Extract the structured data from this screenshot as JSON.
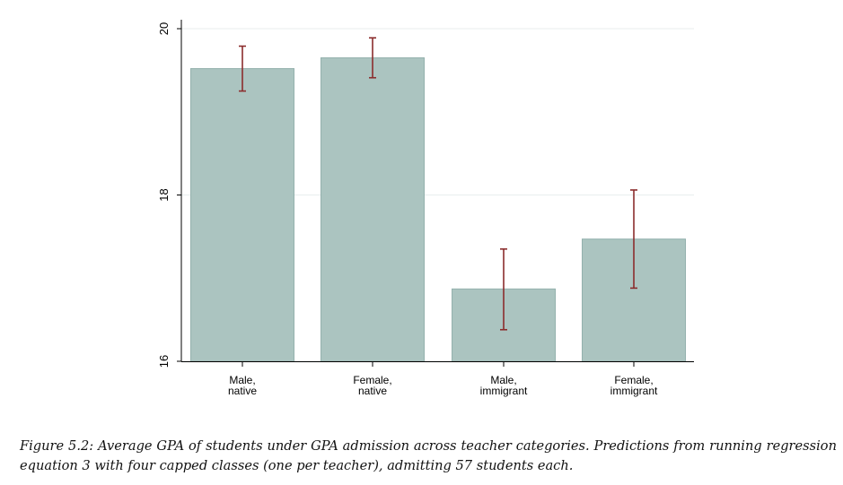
{
  "chart_data": {
    "type": "bar",
    "categories": [
      [
        "Male,",
        "native"
      ],
      [
        "Female,",
        "native"
      ],
      [
        "Male,",
        "immigrant"
      ],
      [
        "Female,",
        "immigrant"
      ]
    ],
    "values": [
      19.52,
      19.65,
      16.87,
      17.47
    ],
    "error_low": [
      19.25,
      19.41,
      16.38,
      16.88
    ],
    "error_high": [
      19.79,
      19.89,
      17.35,
      18.06
    ],
    "yticks": [
      "16",
      "18",
      "20"
    ],
    "ylim": [
      16,
      20.1
    ],
    "title": "",
    "xlabel": "",
    "ylabel": "",
    "grid": true,
    "colors": {
      "bar_fill": "#abc4c0",
      "bar_stroke": "#94b1ad",
      "error_bar": "#8b2d2d",
      "grid": "#e8eeee",
      "axis": "#000000"
    }
  },
  "caption": {
    "label": "Figure 5.2:",
    "text": "Average GPA of students under GPA admission across teacher categories. Predictions from running regression equation 3 with four capped classes (one per teacher), admitting 57 students each."
  }
}
